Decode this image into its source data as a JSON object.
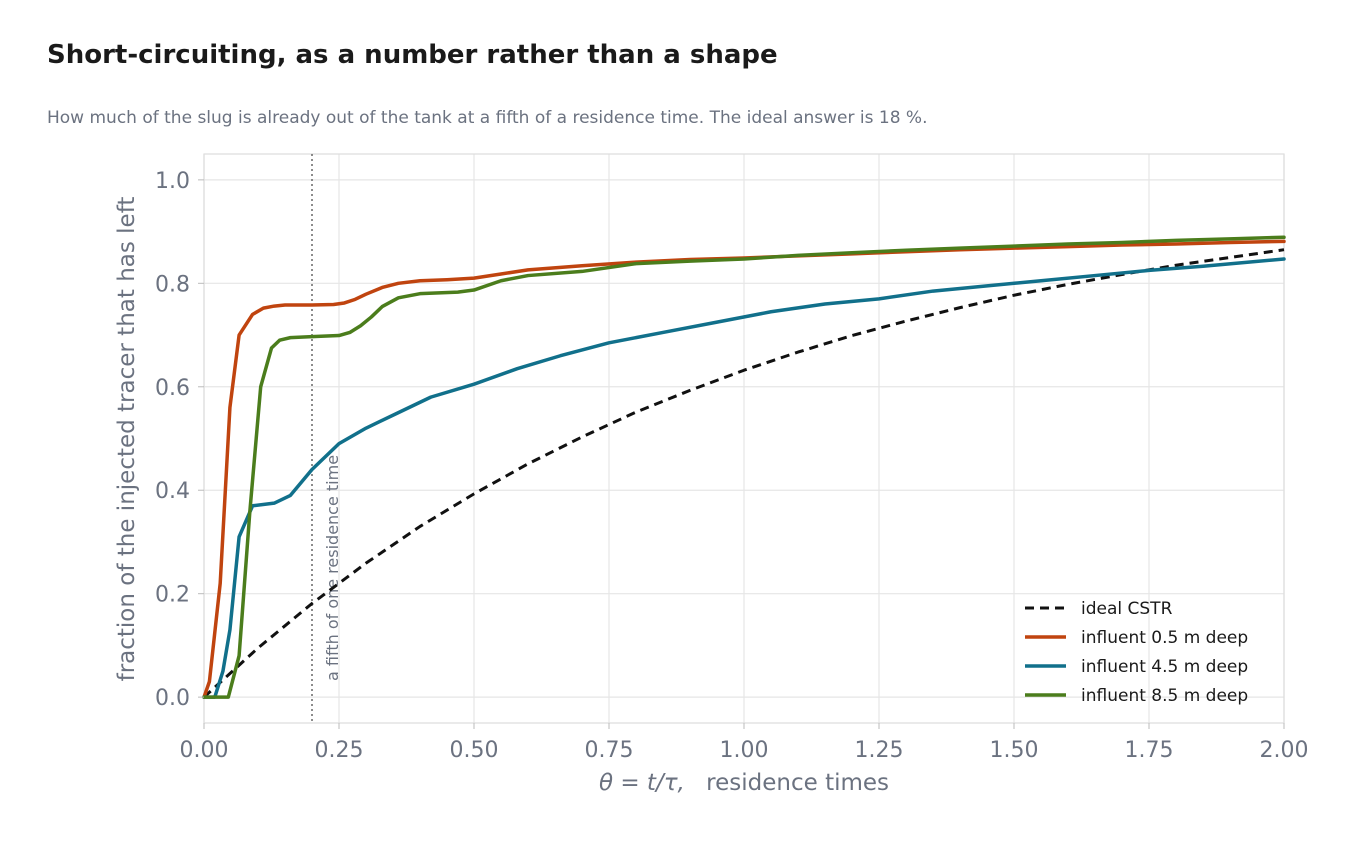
{
  "title": "Short-circuiting, as a number rather than a shape",
  "subtitle": "How much of the slug is already out of the tank at a fifth of a residence time. The ideal answer is 18 %.",
  "chart_data": {
    "type": "line",
    "xlabel_math": "θ = t/τ,",
    "xlabel_text": "residence times",
    "ylabel": "fraction of the injected tracer that has left",
    "xlim": [
      0,
      2.0
    ],
    "ylim": [
      -0.05,
      1.05
    ],
    "xticks": [
      0.0,
      0.25,
      0.5,
      0.75,
      1.0,
      1.25,
      1.5,
      1.75,
      2.0
    ],
    "xtick_labels": [
      "0.00",
      "0.25",
      "0.50",
      "0.75",
      "1.00",
      "1.25",
      "1.50",
      "1.75",
      "2.00"
    ],
    "yticks": [
      0.0,
      0.2,
      0.4,
      0.6,
      0.8,
      1.0
    ],
    "ytick_labels": [
      "0.0",
      "0.2",
      "0.4",
      "0.6",
      "0.8",
      "1.0"
    ],
    "grid": true,
    "legend_position": "bottom-right",
    "vline": {
      "x": 0.2,
      "label": "a fifth of one residence time"
    },
    "series": [
      {
        "name": "ideal CSTR",
        "color": "#111111",
        "dash": true,
        "x": [
          0,
          0.1,
          0.2,
          0.3,
          0.4,
          0.5,
          0.6,
          0.7,
          0.8,
          0.9,
          1.0,
          1.1,
          1.2,
          1.3,
          1.4,
          1.5,
          1.6,
          1.7,
          1.8,
          1.9,
          2.0
        ],
        "y": [
          0,
          0.095,
          0.181,
          0.259,
          0.33,
          0.393,
          0.451,
          0.503,
          0.551,
          0.593,
          0.632,
          0.667,
          0.699,
          0.727,
          0.753,
          0.777,
          0.798,
          0.817,
          0.835,
          0.85,
          0.865
        ]
      },
      {
        "name": "influent 0.5 m deep",
        "color": "#c0440f",
        "dash": false,
        "x": [
          0,
          0.01,
          0.03,
          0.048,
          0.065,
          0.09,
          0.11,
          0.13,
          0.15,
          0.2,
          0.24,
          0.26,
          0.28,
          0.3,
          0.33,
          0.36,
          0.4,
          0.45,
          0.5,
          0.55,
          0.6,
          0.7,
          0.8,
          0.9,
          1.0,
          1.1,
          1.2,
          1.3,
          1.4,
          1.5,
          1.6,
          1.7,
          1.8,
          1.9,
          2.0
        ],
        "y": [
          0,
          0.03,
          0.22,
          0.56,
          0.7,
          0.74,
          0.752,
          0.756,
          0.758,
          0.758,
          0.759,
          0.762,
          0.769,
          0.779,
          0.792,
          0.8,
          0.805,
          0.807,
          0.81,
          0.818,
          0.826,
          0.834,
          0.841,
          0.846,
          0.849,
          0.853,
          0.857,
          0.861,
          0.865,
          0.868,
          0.871,
          0.874,
          0.876,
          0.879,
          0.881
        ]
      },
      {
        "name": "influent 4.5 m deep",
        "color": "#11708b",
        "dash": false,
        "x": [
          0,
          0.02,
          0.035,
          0.048,
          0.065,
          0.09,
          0.13,
          0.16,
          0.2,
          0.25,
          0.3,
          0.36,
          0.42,
          0.5,
          0.58,
          0.66,
          0.75,
          0.85,
          0.95,
          1.05,
          1.15,
          1.25,
          1.35,
          1.45,
          1.55,
          1.65,
          1.75,
          1.85,
          2.0
        ],
        "y": [
          0,
          0.0,
          0.05,
          0.13,
          0.31,
          0.37,
          0.375,
          0.39,
          0.44,
          0.49,
          0.52,
          0.55,
          0.58,
          0.605,
          0.635,
          0.66,
          0.685,
          0.705,
          0.725,
          0.745,
          0.76,
          0.77,
          0.785,
          0.795,
          0.805,
          0.815,
          0.825,
          0.833,
          0.847
        ]
      },
      {
        "name": "influent 8.5 m deep",
        "color": "#4b7d1c",
        "dash": false,
        "x": [
          0,
          0.02,
          0.045,
          0.065,
          0.085,
          0.105,
          0.125,
          0.14,
          0.16,
          0.2,
          0.25,
          0.27,
          0.29,
          0.31,
          0.33,
          0.36,
          0.4,
          0.47,
          0.5,
          0.55,
          0.6,
          0.7,
          0.8,
          0.9,
          1.0,
          1.1,
          1.2,
          1.3,
          1.4,
          1.5,
          1.6,
          1.7,
          1.8,
          1.9,
          2.0
        ],
        "y": [
          0,
          0.0,
          0.0,
          0.08,
          0.36,
          0.6,
          0.675,
          0.69,
          0.695,
          0.697,
          0.699,
          0.705,
          0.718,
          0.735,
          0.755,
          0.772,
          0.78,
          0.783,
          0.787,
          0.805,
          0.815,
          0.823,
          0.838,
          0.843,
          0.847,
          0.854,
          0.859,
          0.864,
          0.868,
          0.872,
          0.876,
          0.879,
          0.883,
          0.886,
          0.889
        ]
      }
    ]
  }
}
